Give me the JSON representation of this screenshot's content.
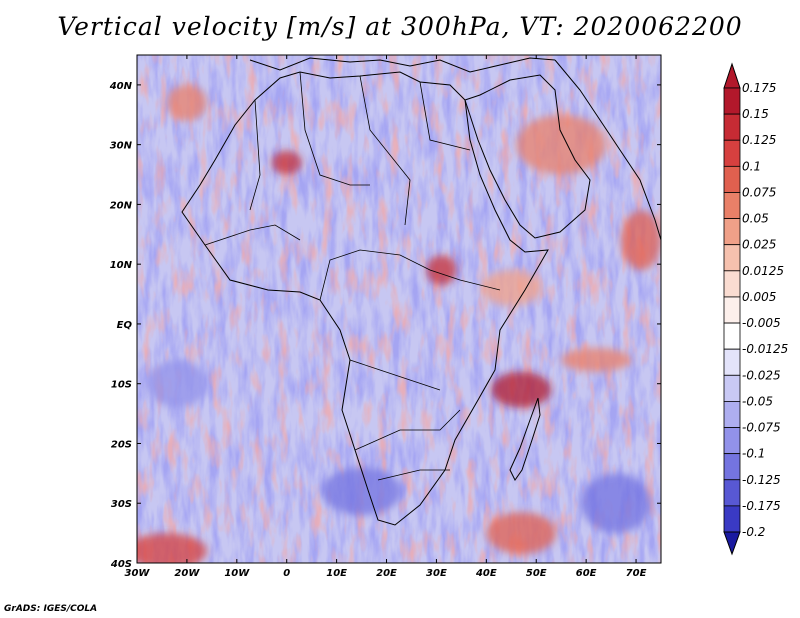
{
  "title": "Vertical velocity [m/s] at 300hPa, VT: 2020062200",
  "credit": "GrADS: IGES/COLA",
  "map": {
    "region": "Africa",
    "lon_range": [
      -30,
      75
    ],
    "lat_range": [
      -40,
      45
    ],
    "lat_ticks": [
      {
        "value": 40,
        "label": "40N"
      },
      {
        "value": 30,
        "label": "30N"
      },
      {
        "value": 20,
        "label": "20N"
      },
      {
        "value": 10,
        "label": "10N"
      },
      {
        "value": 0,
        "label": "EQ"
      },
      {
        "value": -10,
        "label": "10S"
      },
      {
        "value": -20,
        "label": "20S"
      },
      {
        "value": -30,
        "label": "30S"
      },
      {
        "value": -40,
        "label": "40S"
      }
    ],
    "lon_ticks": [
      {
        "value": -30,
        "label": "30W"
      },
      {
        "value": -20,
        "label": "20W"
      },
      {
        "value": -10,
        "label": "10W"
      },
      {
        "value": 0,
        "label": "0"
      },
      {
        "value": 10,
        "label": "10E"
      },
      {
        "value": 20,
        "label": "20E"
      },
      {
        "value": 30,
        "label": "30E"
      },
      {
        "value": 40,
        "label": "40E"
      },
      {
        "value": 50,
        "label": "50E"
      },
      {
        "value": 60,
        "label": "60E"
      },
      {
        "value": 70,
        "label": "70E"
      }
    ]
  },
  "colorbar": {
    "levels": [
      {
        "label": "0.175",
        "color": "#b2182b"
      },
      {
        "label": "0.15",
        "color": "#c62b34"
      },
      {
        "label": "0.125",
        "color": "#d6403f"
      },
      {
        "label": "0.1",
        "color": "#e0604f"
      },
      {
        "label": "0.075",
        "color": "#e98068"
      },
      {
        "label": "0.05",
        "color": "#f0a088"
      },
      {
        "label": "0.025",
        "color": "#f6c1ae"
      },
      {
        "label": "0.0125",
        "color": "#fadcd1"
      },
      {
        "label": "0.005",
        "color": "#fdf0ec"
      },
      {
        "label": "-0.005",
        "color": "#ffffff"
      },
      {
        "label": "-0.0125",
        "color": "#e3e3fa"
      },
      {
        "label": "-0.025",
        "color": "#c9c9f5"
      },
      {
        "label": "-0.05",
        "color": "#aeaef0"
      },
      {
        "label": "-0.075",
        "color": "#9292ea"
      },
      {
        "label": "-0.1",
        "color": "#7474e0"
      },
      {
        "label": "-0.125",
        "color": "#5858d4"
      },
      {
        "label": "-0.175",
        "color": "#3a3ac4"
      },
      {
        "label": "-0.2",
        "color": "#2020a8"
      }
    ],
    "top_color": "#b2182b",
    "bottom_color": "#1a1aa0"
  },
  "highlights": [
    {
      "lon": 47,
      "lat": -11,
      "w": 12,
      "h": 6,
      "color": "#b2182b",
      "name": "madagascar-strait-updraft"
    },
    {
      "lon": 31,
      "lat": 9,
      "w": 6,
      "h": 5,
      "color": "#c62b34",
      "name": "sudan-updraft"
    },
    {
      "lon": -24,
      "lat": -38,
      "w": 16,
      "h": 6,
      "color": "#d6403f",
      "name": "south-atlantic-updraft"
    },
    {
      "lon": 47,
      "lat": -35,
      "w": 14,
      "h": 7,
      "color": "#e0604f",
      "name": "southern-ocean-updraft"
    },
    {
      "lon": 71,
      "lat": 14,
      "w": 8,
      "h": 10,
      "color": "#e0604f",
      "name": "arabian-sea-updraft"
    },
    {
      "lon": 62,
      "lat": -6,
      "w": 14,
      "h": 4,
      "color": "#e98068",
      "name": "indian-ocean-updraft"
    },
    {
      "lon": 0,
      "lat": 27,
      "w": 6,
      "h": 4,
      "color": "#c62b34",
      "name": "sahara-updraft"
    },
    {
      "lon": -20,
      "lat": 37,
      "w": 8,
      "h": 6,
      "color": "#e98068",
      "name": "north-atlantic-updraft"
    },
    {
      "lon": 45,
      "lat": 6,
      "w": 12,
      "h": 6,
      "color": "#f0a088",
      "name": "somali-updraft"
    },
    {
      "lon": 55,
      "lat": 30,
      "w": 18,
      "h": 10,
      "color": "#e98068",
      "name": "iran-updraft"
    },
    {
      "lon": 66,
      "lat": -30,
      "w": 14,
      "h": 10,
      "color": "#7474e0",
      "name": "indian-ocean-downdraft"
    },
    {
      "lon": 15,
      "lat": -28,
      "w": 16,
      "h": 8,
      "color": "#7474e0",
      "name": "south-atlantic-downdraft"
    },
    {
      "lon": -22,
      "lat": -10,
      "w": 12,
      "h": 8,
      "color": "#9292ea",
      "name": "mid-atlantic-downdraft"
    }
  ]
}
